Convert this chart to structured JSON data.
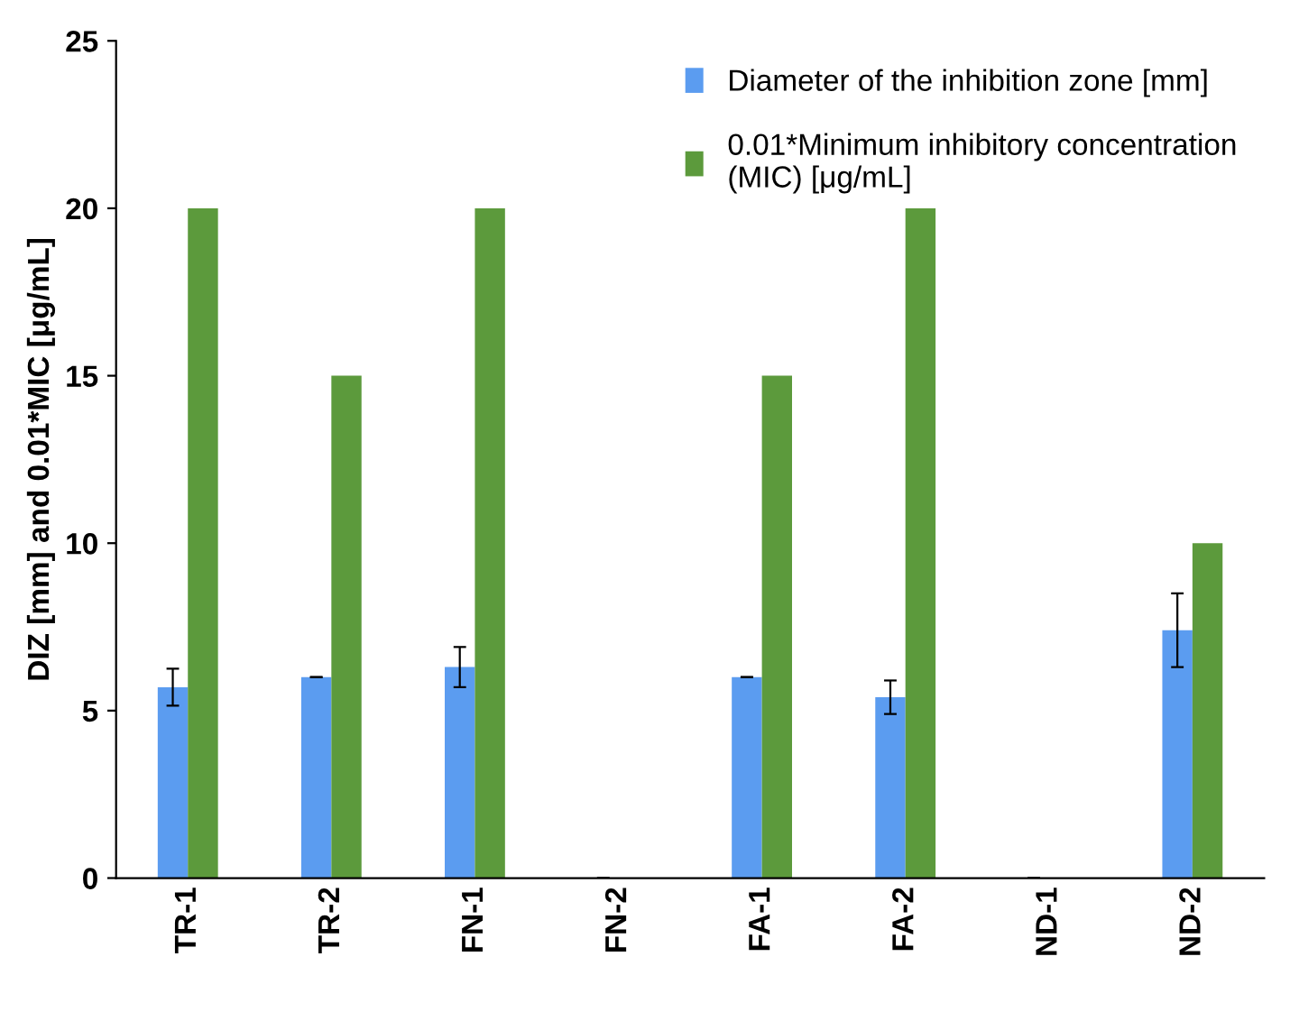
{
  "chart_data": {
    "type": "bar",
    "ylabel": "DIZ [mm] and 0.01*MIC [μg/mL]",
    "categories": [
      "TR-1",
      "TR-2",
      "FN-1",
      "FN-2",
      "FA-1",
      "FA-2",
      "ND-1",
      "ND-2"
    ],
    "series": [
      {
        "name": "Diameter of the inhibition zone [mm]",
        "color": "#5b9cf0",
        "values": [
          5.7,
          6.0,
          6.3,
          null,
          6.0,
          5.4,
          null,
          7.4
        ],
        "errors": [
          0.55,
          0,
          0.6,
          null,
          0,
          0.5,
          null,
          1.1
        ]
      },
      {
        "name": "0.01*Minimum inhibitory concentration\n(MIC) [μg/mL]",
        "color": "#5c9a3c",
        "values": [
          20,
          15,
          20,
          null,
          15,
          20,
          null,
          10
        ]
      }
    ],
    "ylim": [
      0,
      25
    ],
    "yticks": [
      0,
      5,
      10,
      15,
      20,
      25
    ],
    "grid": false,
    "legend": "top right"
  }
}
